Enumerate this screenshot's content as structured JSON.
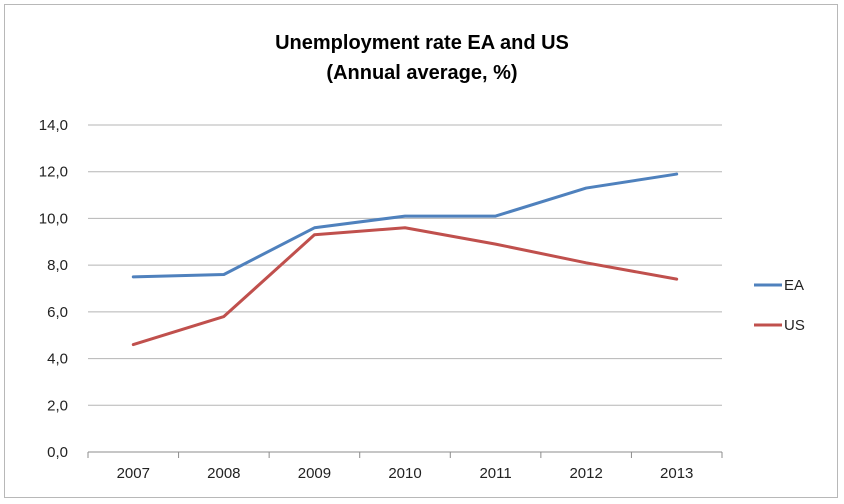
{
  "chart_data": {
    "type": "line",
    "title": "Unemployment rate EA and US",
    "subtitle": "(Annual average, %)",
    "categories": [
      "2007",
      "2008",
      "2009",
      "2010",
      "2011",
      "2012",
      "2013"
    ],
    "series": [
      {
        "name": "EA",
        "values": [
          7.5,
          7.6,
          9.6,
          10.1,
          10.1,
          11.3,
          11.9
        ],
        "color": "#4f81bd"
      },
      {
        "name": "US",
        "values": [
          4.6,
          5.8,
          9.3,
          9.6,
          8.9,
          8.1,
          7.4
        ],
        "color": "#c0504d"
      }
    ],
    "ylim": [
      0,
      14
    ],
    "yticks": [
      "0,0",
      "2,0",
      "4,0",
      "6,0",
      "8,0",
      "10,0",
      "12,0",
      "14,0"
    ],
    "grid": "horizontal",
    "legend": "right"
  }
}
